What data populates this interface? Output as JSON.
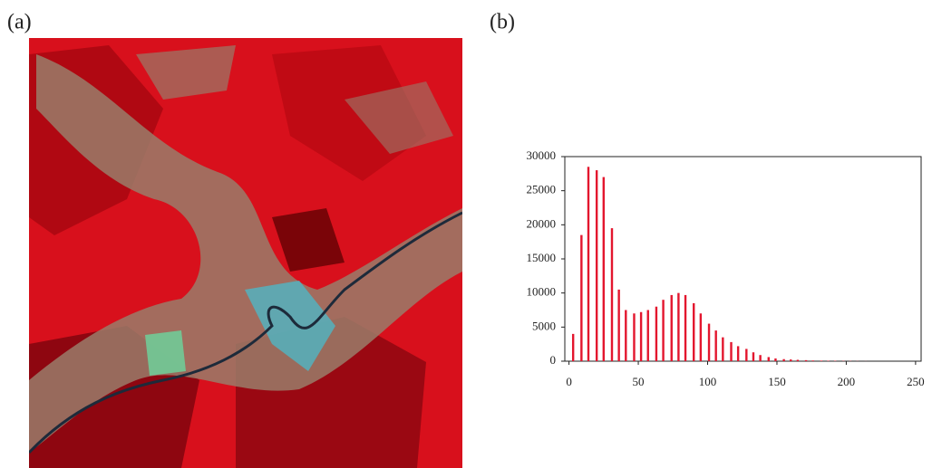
{
  "labels": {
    "a": "(a)",
    "b": "(b)"
  },
  "chart_data": {
    "type": "bar",
    "color": "#e3162e",
    "x": [
      3,
      9,
      14,
      20,
      25,
      31,
      36,
      41,
      47,
      52,
      57,
      63,
      68,
      74,
      79,
      84,
      90,
      95,
      101,
      106,
      111,
      117,
      122,
      128,
      133,
      138,
      144,
      149,
      155,
      160,
      165,
      171,
      176,
      182,
      187,
      192,
      198,
      203,
      208,
      214
    ],
    "values": [
      4000,
      18500,
      28500,
      28000,
      27000,
      19500,
      10500,
      7500,
      7000,
      7200,
      7500,
      8000,
      9000,
      9700,
      10000,
      9700,
      8500,
      7000,
      5500,
      4500,
      3500,
      2800,
      2200,
      1800,
      1300,
      900,
      600,
      400,
      300,
      250,
      200,
      150,
      100,
      80,
      60,
      50,
      40,
      30,
      20,
      10
    ],
    "xlim": [
      -3,
      254
    ],
    "ylim": [
      0,
      30000
    ],
    "xticks": [
      0,
      50,
      100,
      150,
      200,
      250
    ],
    "yticks": [
      0,
      5000,
      10000,
      15000,
      20000,
      25000,
      30000
    ]
  }
}
